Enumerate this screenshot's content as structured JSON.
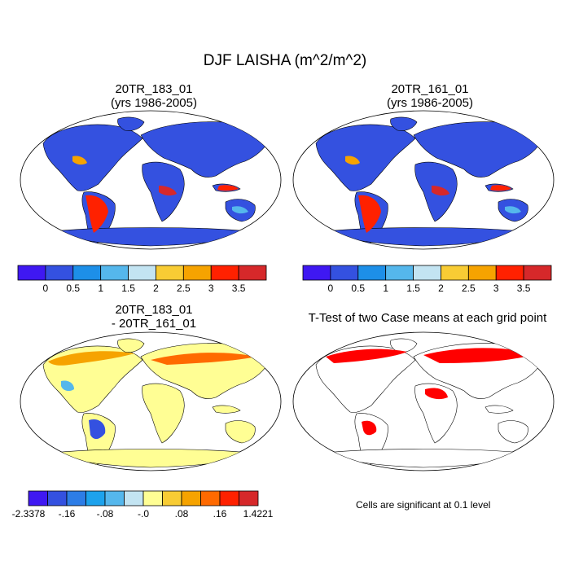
{
  "title": "DJF LAISHA (m^2/m^2)",
  "panels": [
    {
      "line1": "20TR_183_01",
      "line2": "(yrs 1986-2005)"
    },
    {
      "line1": "20TR_161_01",
      "line2": "(yrs 1986-2005)"
    },
    {
      "line1": "20TR_183_01",
      "line2": "- 20TR_161_01"
    },
    {
      "line1": "T-Test of two Case means at each grid point",
      "line2": ""
    }
  ],
  "colorbar_abs": {
    "colors": [
      "#3f18f2",
      "#3451e0",
      "#1d8fe8",
      "#55b7ec",
      "#c3e4f2",
      "#f8cc34",
      "#f6a300",
      "#ff2100",
      "#d6282a"
    ],
    "ticks": [
      "0",
      "0.5",
      "1",
      "1.5",
      "2",
      "2.5",
      "3",
      "3.5"
    ]
  },
  "colorbar_diff": {
    "colors": [
      "#3f18f2",
      "#3451e0",
      "#2d7de6",
      "#1da2ec",
      "#55b7ec",
      "#c3e4f2",
      "#fffe94",
      "#f8cc34",
      "#f6a300",
      "#ff6a00",
      "#ff2100",
      "#d6282a"
    ],
    "ticks": [
      "-2.3378",
      "-.16",
      "-.08",
      "-.0",
      ".08",
      ".16",
      "1.4221"
    ]
  },
  "significance_note": "Cells are significant at 0.1 level"
}
